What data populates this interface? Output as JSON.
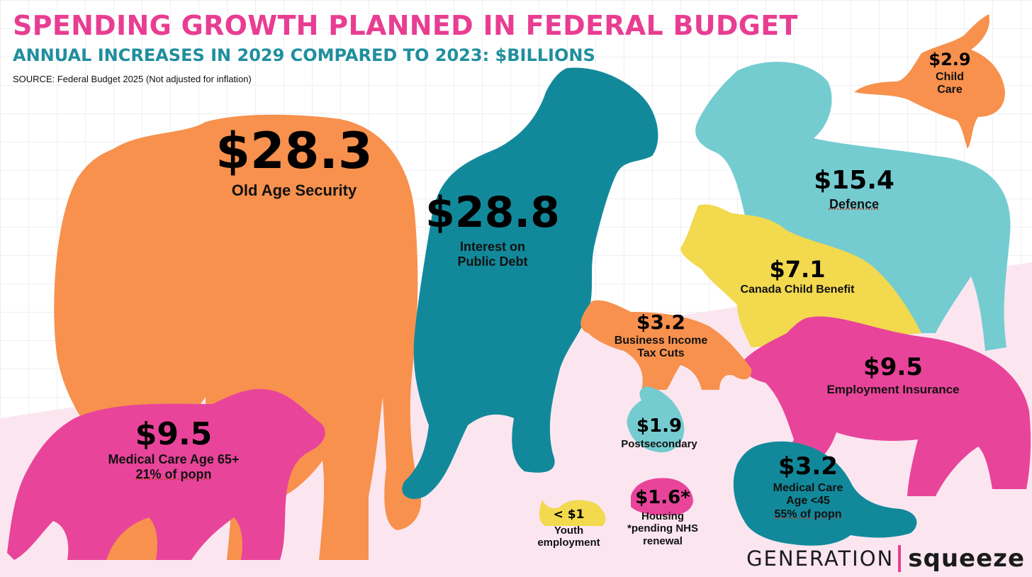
{
  "header": {
    "title": "SPENDING GROWTH PLANNED IN FEDERAL BUDGET",
    "subtitle": "ANNUAL INCREASES IN 2029 COMPARED TO 2023: $BILLIONS",
    "source": "SOURCE: Federal Budget 2025 (Not adjusted for inflation)"
  },
  "items": [
    {
      "key": "oas",
      "animal": "elephant",
      "value": "$28.3",
      "amount": 28.3,
      "label_lines": [
        "Old Age Security"
      ],
      "color": "#f7914d"
    },
    {
      "key": "debt",
      "animal": "t-rex",
      "value": "$28.8",
      "amount": 28.8,
      "label_lines": [
        "Interest on",
        "Public Debt"
      ],
      "color": "#12899b"
    },
    {
      "key": "defence",
      "animal": "ram",
      "value": "$15.4",
      "amount": 15.4,
      "label_lines": [
        "Defence"
      ],
      "color": "#74ccd1"
    },
    {
      "key": "childcare",
      "animal": "bird",
      "value": "$2.9",
      "amount": 2.9,
      "label_lines": [
        "Child",
        "Care"
      ],
      "color": "#f7914d"
    },
    {
      "key": "ccb",
      "animal": "wolf",
      "value": "$7.1",
      "amount": 7.1,
      "label_lines": [
        "Canada Child Benefit"
      ],
      "color": "#f2d94e"
    },
    {
      "key": "business",
      "animal": "fox",
      "value": "$3.2",
      "amount": 3.2,
      "label_lines": [
        "Business Income",
        "Tax Cuts"
      ],
      "color": "#f7914d"
    },
    {
      "key": "ei",
      "animal": "bear",
      "value": "$9.5",
      "amount": 9.5,
      "label_lines": [
        "Employment Insurance"
      ],
      "color": "#e8449a"
    },
    {
      "key": "med65",
      "animal": "bear",
      "value": "$9.5",
      "amount": 9.5,
      "label_lines": [
        "Medical Care Age 65+",
        "21% of popn"
      ],
      "color": "#e8449a"
    },
    {
      "key": "postsec",
      "animal": "squirrel",
      "value": "$1.9",
      "amount": 1.9,
      "label_lines": [
        "Postsecondary"
      ],
      "color": "#74ccd1"
    },
    {
      "key": "medlt45",
      "animal": "beaver",
      "value": "$3.2",
      "amount": 3.2,
      "label_lines": [
        "Medical Care",
        "Age <45",
        "55% of popn"
      ],
      "color": "#12899b"
    },
    {
      "key": "housing",
      "animal": "hedgehog",
      "value": "$1.6*",
      "amount": 1.6,
      "label_lines": [
        "Housing",
        "*pending NHS",
        "renewal"
      ],
      "color": "#e8449a"
    },
    {
      "key": "youth",
      "animal": "snail",
      "value": "< $1",
      "amount": 1,
      "label_lines": [
        "Youth",
        "employment"
      ],
      "color": "#f2d94e"
    }
  ],
  "brand": {
    "left": "GENERATION",
    "right": "squeeze",
    "divider_color": "#e93d92"
  }
}
